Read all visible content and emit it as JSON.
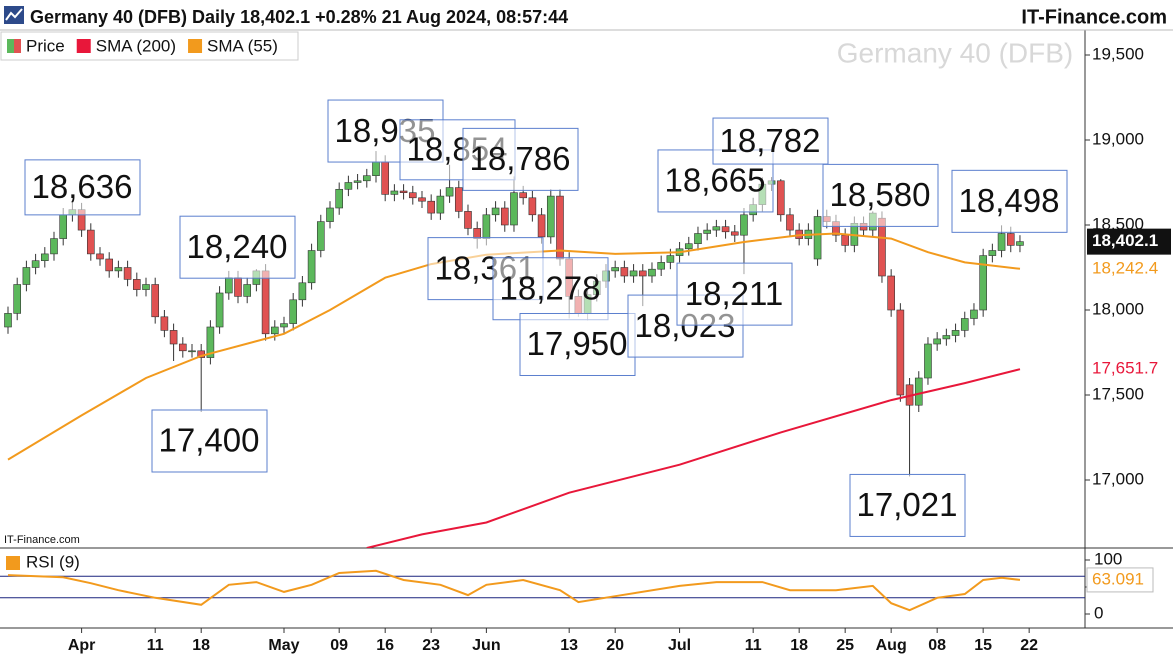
{
  "chart_data": [
    {
      "type": "candlestick",
      "title": "Germany 40 (DFB) Daily 18,402.1 +0.28% 21 Aug 2024, 08:57:44",
      "source": "IT-Finance.com",
      "watermark": "Germany 40 (DFB)",
      "credit": "IT-Finance.com",
      "xlim": [
        -0.87,
        117.07
      ],
      "ylim": [
        16600,
        19647
      ],
      "yticks": [
        {
          "value": 17000,
          "label": "17,000"
        },
        {
          "value": 17500,
          "label": "17,500"
        },
        {
          "value": 18000,
          "label": "18,000"
        },
        {
          "value": 18500,
          "label": "18,500"
        },
        {
          "value": 19000,
          "label": "19,000"
        },
        {
          "value": 19500,
          "label": "19,500"
        }
      ],
      "series": [
        {
          "name": "Price",
          "up_color": "#5cb85c",
          "down_color": "#e05252",
          "value_label": "18,402.1",
          "open": [
            17900,
            17980,
            18150,
            18250,
            18290,
            18330,
            18420,
            18560,
            18590,
            18470,
            18330,
            18300,
            18230,
            18250,
            18180,
            18120,
            18150,
            17960,
            17880,
            17800,
            17760,
            17760,
            17720,
            17900,
            18100,
            18190,
            18080,
            18150,
            18230,
            17860,
            17900,
            17920,
            18060,
            18160,
            18350,
            18520,
            18600,
            18710,
            18750,
            18760,
            18790,
            18870,
            18680,
            18700,
            18690,
            18660,
            18640,
            18570,
            18670,
            18720,
            18580,
            18480,
            18420,
            18560,
            18600,
            18500,
            18690,
            18660,
            18560,
            18430,
            18670,
            18300,
            18080,
            17980,
            18090,
            18170,
            18230,
            18250,
            18200,
            18230,
            18200,
            18240,
            18280,
            18320,
            18360,
            18390,
            18450,
            18470,
            18490,
            18460,
            18440,
            18560,
            18620,
            18740,
            18760,
            18560,
            18470,
            18420,
            18300,
            18550,
            18520,
            18440,
            18380,
            18510,
            18470,
            18540,
            18200,
            18000,
            17560,
            17440,
            17600,
            17800,
            17830,
            17850,
            17880,
            17950,
            18000,
            18320,
            18350,
            18450,
            18380
          ],
          "high": [
            18020,
            18190,
            18290,
            18330,
            18370,
            18460,
            18600,
            18636,
            18630,
            18510,
            18370,
            18340,
            18290,
            18290,
            18220,
            18190,
            18190,
            18000,
            17920,
            17840,
            17800,
            17800,
            17940,
            18140,
            18230,
            18230,
            18190,
            18240,
            18270,
            17940,
            17960,
            18100,
            18200,
            18390,
            18560,
            18640,
            18750,
            18790,
            18800,
            18830,
            18935,
            18910,
            18740,
            18740,
            18730,
            18700,
            18680,
            18710,
            18854,
            18760,
            18620,
            18520,
            18600,
            18640,
            18640,
            18786,
            18730,
            18700,
            18600,
            18710,
            18710,
            18340,
            18120,
            18130,
            18210,
            18270,
            18290,
            18290,
            18270,
            18270,
            18280,
            18320,
            18360,
            18400,
            18430,
            18490,
            18510,
            18530,
            18530,
            18500,
            18600,
            18660,
            18780,
            18782,
            18770,
            18600,
            18510,
            18510,
            18590,
            18590,
            18560,
            18480,
            18550,
            18550,
            18580,
            18580,
            18240,
            18040,
            17600,
            17640,
            17840,
            17870,
            17890,
            17920,
            17990,
            18040,
            18360,
            18390,
            18498,
            18490,
            18440
          ],
          "low": [
            17860,
            17940,
            18110,
            18210,
            18250,
            18290,
            18380,
            18520,
            18430,
            18290,
            18260,
            18190,
            18190,
            18140,
            18080,
            18080,
            17920,
            17840,
            17700,
            17720,
            17720,
            17400,
            17680,
            17860,
            18060,
            18040,
            18040,
            18110,
            17820,
            17820,
            17860,
            17880,
            18020,
            18120,
            18310,
            18480,
            18560,
            18670,
            18710,
            18720,
            18750,
            18640,
            18640,
            18650,
            18620,
            18600,
            18530,
            18530,
            18630,
            18540,
            18440,
            18361,
            18380,
            18520,
            18460,
            18460,
            18620,
            18520,
            18390,
            18390,
            18260,
            17950,
            17960,
            17940,
            18050,
            18130,
            18190,
            18160,
            18160,
            18023,
            18160,
            18200,
            18240,
            18280,
            18320,
            18350,
            18410,
            18430,
            18420,
            18400,
            18211,
            18520,
            18580,
            18700,
            18520,
            18430,
            18380,
            18380,
            18260,
            18480,
            18400,
            18340,
            18340,
            18430,
            18430,
            18160,
            17960,
            17460,
            17021,
            17400,
            17560,
            17760,
            17790,
            17810,
            17840,
            17910,
            17960,
            18280,
            18310,
            18340,
            18340
          ],
          "close": [
            17980,
            18150,
            18250,
            18290,
            18330,
            18420,
            18560,
            18590,
            18470,
            18330,
            18300,
            18230,
            18250,
            18180,
            18120,
            18150,
            17960,
            17880,
            17800,
            17760,
            17760,
            17720,
            17900,
            18100,
            18190,
            18080,
            18150,
            18230,
            17860,
            17900,
            17920,
            18060,
            18160,
            18350,
            18520,
            18600,
            18710,
            18750,
            18760,
            18790,
            18870,
            18680,
            18700,
            18690,
            18660,
            18640,
            18570,
            18670,
            18720,
            18580,
            18480,
            18420,
            18560,
            18600,
            18500,
            18690,
            18660,
            18560,
            18430,
            18670,
            18300,
            18080,
            17980,
            18090,
            18170,
            18230,
            18250,
            18200,
            18230,
            18200,
            18240,
            18280,
            18320,
            18360,
            18390,
            18450,
            18470,
            18490,
            18460,
            18440,
            18560,
            18620,
            18740,
            18760,
            18560,
            18470,
            18420,
            18470,
            18550,
            18520,
            18440,
            18380,
            18510,
            18470,
            18570,
            18200,
            18000,
            17500,
            17440,
            17600,
            17800,
            17830,
            17850,
            17880,
            17950,
            18000,
            18320,
            18350,
            18450,
            18380,
            18402.1
          ]
        },
        {
          "name": "SMA (200)",
          "color": "#e8173a",
          "value_label": "17,651.7",
          "x": [
            39,
            45,
            52,
            61,
            73,
            84,
            96,
            104,
            110
          ],
          "values": [
            16600,
            16680,
            16750,
            16925,
            17090,
            17280,
            17470,
            17570,
            17651.7
          ]
        },
        {
          "name": "SMA (55)",
          "color": "#f29a1d",
          "value_label": "18,242.4",
          "x": [
            0,
            8,
            15,
            21,
            30,
            35,
            41,
            46,
            52,
            60,
            66,
            73,
            80,
            86,
            90,
            96,
            100,
            104,
            110
          ],
          "values": [
            17120,
            17380,
            17600,
            17730,
            17860,
            18000,
            18190,
            18270,
            18325,
            18350,
            18330,
            18340,
            18400,
            18440,
            18450,
            18420,
            18340,
            18280,
            18242.4
          ]
        }
      ],
      "annotations": [
        {
          "value": 18636,
          "label": "18,636"
        },
        {
          "value": 17400,
          "label": "17,400"
        },
        {
          "value": 18240,
          "label": "18,240"
        },
        {
          "value": 18935,
          "label": "18,935"
        },
        {
          "value": 18854,
          "label": "18,854"
        },
        {
          "value": 18786,
          "label": "18,786"
        },
        {
          "value": 18361,
          "label": "18,361"
        },
        {
          "value": 18278,
          "label": "18,278"
        },
        {
          "value": 17950,
          "label": "17,950"
        },
        {
          "value": 18665,
          "label": "18,665"
        },
        {
          "value": 18782,
          "label": "18,782"
        },
        {
          "value": 18023,
          "label": "18,023"
        },
        {
          "value": 18211,
          "label": "18,211"
        },
        {
          "value": 18580,
          "label": "18,580"
        },
        {
          "value": 18498,
          "label": "18,498"
        },
        {
          "value": 17021,
          "label": "17,021"
        }
      ]
    },
    {
      "type": "line",
      "xlim": [
        -0.87,
        117.07
      ],
      "ylim": [
        -25.9,
        122.2
      ],
      "yticks": [
        0,
        50,
        100
      ],
      "levels": [
        70,
        30
      ],
      "level_color": "#1a237e",
      "xticks": [
        {
          "value": 8,
          "label": "Apr"
        },
        {
          "value": 16,
          "label": "11"
        },
        {
          "value": 21,
          "label": "18"
        },
        {
          "value": 30,
          "label": "May"
        },
        {
          "value": 36,
          "label": "09"
        },
        {
          "value": 41,
          "label": "16"
        },
        {
          "value": 46,
          "label": "23"
        },
        {
          "value": 52,
          "label": "Jun"
        },
        {
          "value": 61,
          "label": "13"
        },
        {
          "value": 66,
          "label": "20"
        },
        {
          "value": 73,
          "label": "Jul"
        },
        {
          "value": 81,
          "label": "11"
        },
        {
          "value": 86,
          "label": "18"
        },
        {
          "value": 91,
          "label": "25"
        },
        {
          "value": 96,
          "label": "Aug"
        },
        {
          "value": 101,
          "label": "08"
        },
        {
          "value": 106,
          "label": "15"
        },
        {
          "value": 111,
          "label": "22"
        }
      ],
      "series": [
        {
          "name": "RSI (9)",
          "color": "#f29a1d",
          "value_label": "63.091",
          "x": [
            0,
            6,
            9,
            12,
            16,
            21,
            24,
            27,
            30,
            33,
            36,
            40,
            43,
            47,
            50,
            52,
            56,
            60,
            62,
            66,
            73,
            77,
            82,
            85,
            90,
            94,
            96,
            98,
            101,
            104,
            106,
            108,
            110
          ],
          "values": [
            72,
            68,
            57,
            44,
            30,
            17,
            54,
            59,
            41,
            54,
            76,
            80,
            63,
            54,
            35,
            54,
            63,
            44,
            22,
            33,
            52,
            59,
            59,
            44,
            44,
            52,
            20,
            7,
            30,
            37,
            63,
            67,
            63.091
          ]
        }
      ]
    }
  ]
}
